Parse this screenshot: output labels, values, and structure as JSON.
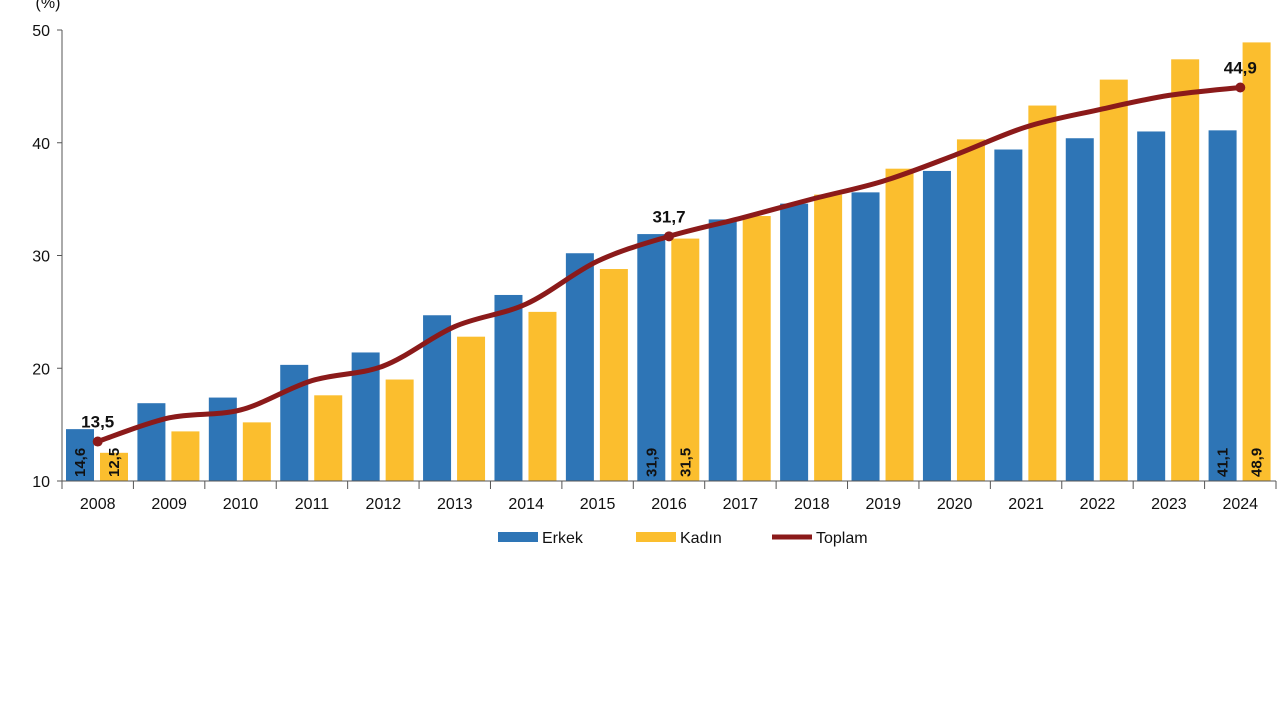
{
  "chart_data": {
    "type": "bar",
    "unit_label": "(%)",
    "categories": [
      "2008",
      "2009",
      "2010",
      "2011",
      "2012",
      "2013",
      "2014",
      "2015",
      "2016",
      "2017",
      "2018",
      "2019",
      "2020",
      "2021",
      "2022",
      "2023",
      "2024"
    ],
    "series": [
      {
        "name": "Erkek",
        "kind": "bar",
        "color": "#2e75b6",
        "values": [
          14.6,
          16.9,
          17.4,
          20.3,
          21.4,
          24.7,
          26.5,
          30.2,
          31.9,
          33.2,
          34.6,
          35.6,
          37.5,
          39.4,
          40.4,
          41.0,
          41.1
        ]
      },
      {
        "name": "Kadın",
        "kind": "bar",
        "color": "#fbbe2e",
        "values": [
          12.5,
          14.4,
          15.2,
          17.6,
          19.0,
          22.8,
          25.0,
          28.8,
          31.5,
          33.5,
          35.4,
          37.7,
          40.3,
          43.3,
          45.6,
          47.4,
          48.9
        ]
      },
      {
        "name": "Toplam",
        "kind": "line",
        "color": "#8b1a1a",
        "values": [
          13.5,
          15.6,
          16.3,
          18.9,
          20.2,
          23.7,
          25.7,
          29.5,
          31.7,
          33.3,
          35.0,
          36.6,
          38.9,
          41.4,
          42.9,
          44.2,
          44.9
        ]
      }
    ],
    "ylim": [
      10,
      50
    ],
    "yticks": [
      10,
      20,
      30,
      40,
      50
    ],
    "legend_position": "bottom",
    "data_labels": {
      "Erkek": [
        {
          "category": "2008",
          "text": "14,6"
        },
        {
          "category": "2016",
          "text": "31,9"
        },
        {
          "category": "2024",
          "text": "41,1"
        }
      ],
      "Kadın": [
        {
          "category": "2008",
          "text": "12,5"
        },
        {
          "category": "2016",
          "text": "31,5"
        },
        {
          "category": "2024",
          "text": "48,9"
        }
      ],
      "Toplam": [
        {
          "category": "2008",
          "text": "13,5"
        },
        {
          "category": "2016",
          "text": "31,7"
        },
        {
          "category": "2024",
          "text": "44,9"
        }
      ]
    }
  }
}
